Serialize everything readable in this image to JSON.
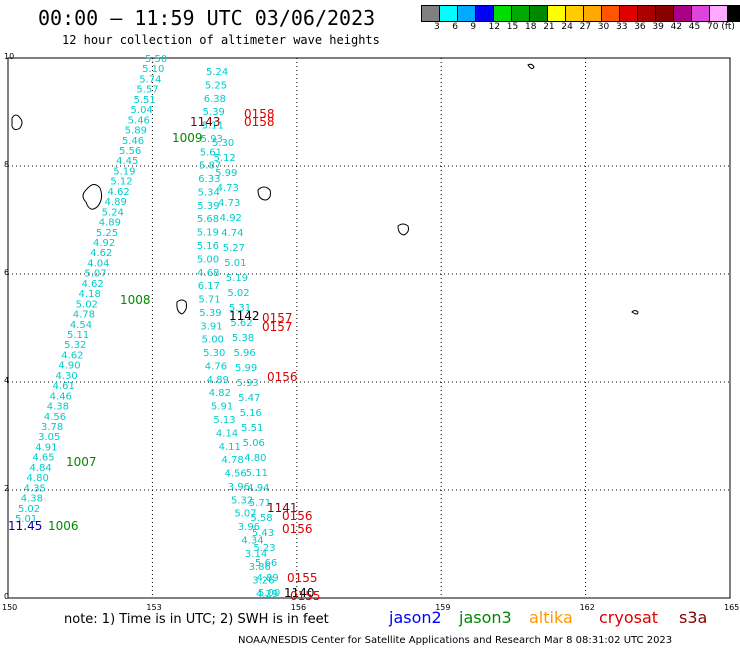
{
  "header": {
    "title": "00:00 – 11:59 UTC 03/06/2023",
    "subtitle": "12 hour collection of altimeter wave heights"
  },
  "scale": {
    "colors": [
      "#808080",
      "#00ffff",
      "#00aaff",
      "#0000ff",
      "#00dd00",
      "#00aa00",
      "#008800",
      "#ffff00",
      "#ffcc00",
      "#ffaa00",
      "#ff5500",
      "#dd0000",
      "#aa0000",
      "#880000",
      "#aa0088",
      "#dd44dd",
      "#ffaaff",
      "#000000"
    ],
    "labels": [
      "3",
      "6",
      "9",
      "12",
      "15",
      "18",
      "21",
      "24",
      "27",
      "30",
      "33",
      "36",
      "39",
      "42",
      "45",
      "70 (ft)"
    ]
  },
  "axes": {
    "x_ticks": [
      "150",
      "153",
      "156",
      "159",
      "162",
      "165"
    ],
    "y_ticks": [
      "0",
      "2",
      "4",
      "6",
      "8",
      "10"
    ]
  },
  "footer": {
    "note": "note:  1) Time is in UTC;  2) SWH is in feet",
    "satellites": [
      {
        "name": "jason2",
        "color": "#0000ff"
      },
      {
        "name": "jason3",
        "color": "#008800"
      },
      {
        "name": "altika",
        "color": "#ff9900"
      },
      {
        "name": "cryosat",
        "color": "#dd0000"
      },
      {
        "name": "s3a",
        "color": "#880000"
      }
    ],
    "credit": "NOAA/NESDIS Center for Satellite Applications and Research    Mar  8 08:31:02 UTC 2023"
  },
  "tracks": {
    "left": [
      "5.50",
      "5.10",
      "5.74",
      "5.57",
      "5.51",
      "5.04",
      "5.46",
      "5.89",
      "5.46",
      "5.56",
      "4.45",
      "5.19",
      "5.12",
      "4.62",
      "4.89",
      "5.24",
      "4.89",
      "5.25",
      "4.92",
      "4.62",
      "4.04",
      "5.07",
      "4.62",
      "4.18",
      "5.02",
      "4.78",
      "4.54",
      "5.11",
      "5.32",
      "4.62",
      "4.90",
      "4.30",
      "4.61",
      "4.46",
      "4.38",
      "4.56",
      "3.78",
      "3.05",
      "4.91",
      "4.65",
      "4.84",
      "4.80",
      "4.35",
      "4.38",
      "5.02",
      "5.01"
    ],
    "middle": [
      "5.24",
      "5.25",
      "6.38",
      "5.39",
      "5.11",
      "5.93",
      "5.61",
      "5.87",
      "6.33",
      "5.34",
      "5.39",
      "5.68",
      "5.19",
      "5.16",
      "5.00",
      "4.68",
      "6.17",
      "5.71",
      "5.39",
      "3.91",
      "5.00",
      "5.30",
      "4.76",
      "4.89",
      "4.82",
      "5.91",
      "5.13",
      "4.14",
      "4.11",
      "4.78",
      "4.56",
      "3.96",
      "5.32",
      "5.07",
      "3.96",
      "4.34",
      "3.14",
      "3.86",
      "3.26",
      "4.29"
    ],
    "right": [
      "5.30",
      "5.12",
      "5.99",
      "4.73",
      "4.73",
      "4.92",
      "4.74",
      "5.27",
      "5.01",
      "5.19",
      "5.02",
      "5.31",
      "5.62",
      "5.38",
      "5.96",
      "5.99",
      "5.93",
      "5.47",
      "5.16",
      "5.51",
      "5.06",
      "4.80",
      "5.11",
      "4.94",
      "5.71",
      "5.58",
      "5.43",
      "5.23",
      "5.66",
      "4.89",
      "5.00"
    ],
    "labels": [
      {
        "text": "1143",
        "color": "#880000"
      },
      {
        "text": "0158",
        "color": "#dd0000"
      },
      {
        "text": "0158",
        "color": "#dd0000"
      },
      {
        "text": "1009",
        "color": "#008800"
      },
      {
        "text": "1008",
        "color": "#008800"
      },
      {
        "text": "1142",
        "color": "#000000"
      },
      {
        "text": "0157",
        "color": "#dd0000"
      },
      {
        "text": "0157",
        "color": "#dd0000"
      },
      {
        "text": "0156",
        "color": "#dd0000"
      },
      {
        "text": "1007",
        "color": "#008800"
      },
      {
        "text": "1141",
        "color": "#880000"
      },
      {
        "text": "0156",
        "color": "#dd0000"
      },
      {
        "text": "0156",
        "color": "#dd0000"
      },
      {
        "text": "11.45",
        "color": "#0000aa"
      },
      {
        "text": "1006",
        "color": "#008800"
      },
      {
        "text": "0155",
        "color": "#dd0000"
      },
      {
        "text": "1140",
        "color": "#000000"
      },
      {
        "text": "0155",
        "color": "#dd0000"
      }
    ]
  }
}
